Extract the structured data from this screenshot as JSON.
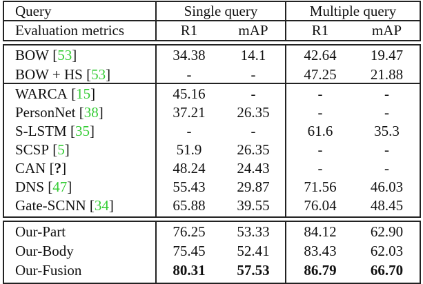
{
  "table": {
    "header": {
      "row1": {
        "query_label": "Query",
        "group1": "Single query",
        "group2": "Multiple query"
      },
      "row2": {
        "metrics_label": "Evaluation metrics",
        "cols": [
          "R1",
          "mAP",
          "R1",
          "mAP"
        ]
      }
    },
    "sections": [
      {
        "rows": [
          {
            "method": "BOW",
            "ref": "53",
            "values": [
              "34.38",
              "14.1",
              "42.64",
              "19.47"
            ]
          },
          {
            "method": "BOW + HS",
            "ref": "53",
            "values": [
              "-",
              "-",
              "47.25",
              "21.88"
            ]
          }
        ]
      },
      {
        "rows": [
          {
            "method": "WARCA",
            "ref": "15",
            "values": [
              "45.16",
              "-",
              "-",
              "-"
            ]
          },
          {
            "method": "PersonNet",
            "ref": "38",
            "values": [
              "37.21",
              "26.35",
              "-",
              "-"
            ]
          },
          {
            "method": "S-LSTM",
            "ref": "35",
            "values": [
              "-",
              "-",
              "61.6",
              "35.3"
            ]
          },
          {
            "method": "SCSP",
            "ref": "5",
            "values": [
              "51.9",
              "26.35",
              "-",
              "-"
            ]
          },
          {
            "method": "CAN",
            "ref": "?",
            "ref_unresolved": true,
            "values": [
              "48.24",
              "24.43",
              "-",
              "-"
            ]
          },
          {
            "method": "DNS",
            "ref": "47",
            "values": [
              "55.43",
              "29.87",
              "71.56",
              "46.03"
            ]
          },
          {
            "method": "Gate-SCNN",
            "ref": "34",
            "values": [
              "65.88",
              "39.55",
              "76.04",
              "48.45"
            ]
          }
        ]
      },
      {
        "rows": [
          {
            "method": "Our-Part",
            "values": [
              "76.25",
              "53.33",
              "84.12",
              "62.90"
            ]
          },
          {
            "method": "Our-Body",
            "values": [
              "75.45",
              "52.41",
              "83.43",
              "62.03"
            ]
          },
          {
            "method": "Our-Fusion",
            "bold": true,
            "values": [
              "80.31",
              "57.53",
              "86.79",
              "66.70"
            ]
          }
        ]
      }
    ],
    "colors": {
      "citation": "#33cc33",
      "text": "#111111",
      "rule": "#222222"
    }
  }
}
